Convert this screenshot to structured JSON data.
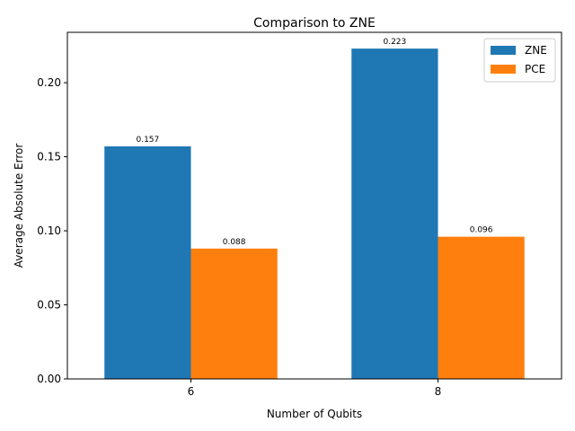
{
  "chart_data": {
    "type": "bar",
    "title": "Comparison to ZNE",
    "xlabel": "Number of Qubits",
    "ylabel": "Average Absolute Error",
    "categories": [
      "6",
      "8"
    ],
    "series": [
      {
        "name": "ZNE",
        "values": [
          0.157,
          0.223
        ],
        "labels": [
          "0.157",
          "0.223"
        ],
        "color": "#1f77b4"
      },
      {
        "name": "PCE",
        "values": [
          0.088,
          0.096
        ],
        "labels": [
          "0.088",
          "0.096"
        ],
        "color": "#ff7f0e"
      }
    ],
    "ylim": [
      0,
      0.234
    ],
    "yticks": [
      0,
      0.05,
      0.1,
      0.15,
      0.2
    ],
    "ytick_labels": [
      "0.00",
      "0.05",
      "0.10",
      "0.15",
      "0.20"
    ],
    "legend_position": "top-right",
    "grid": false
  }
}
